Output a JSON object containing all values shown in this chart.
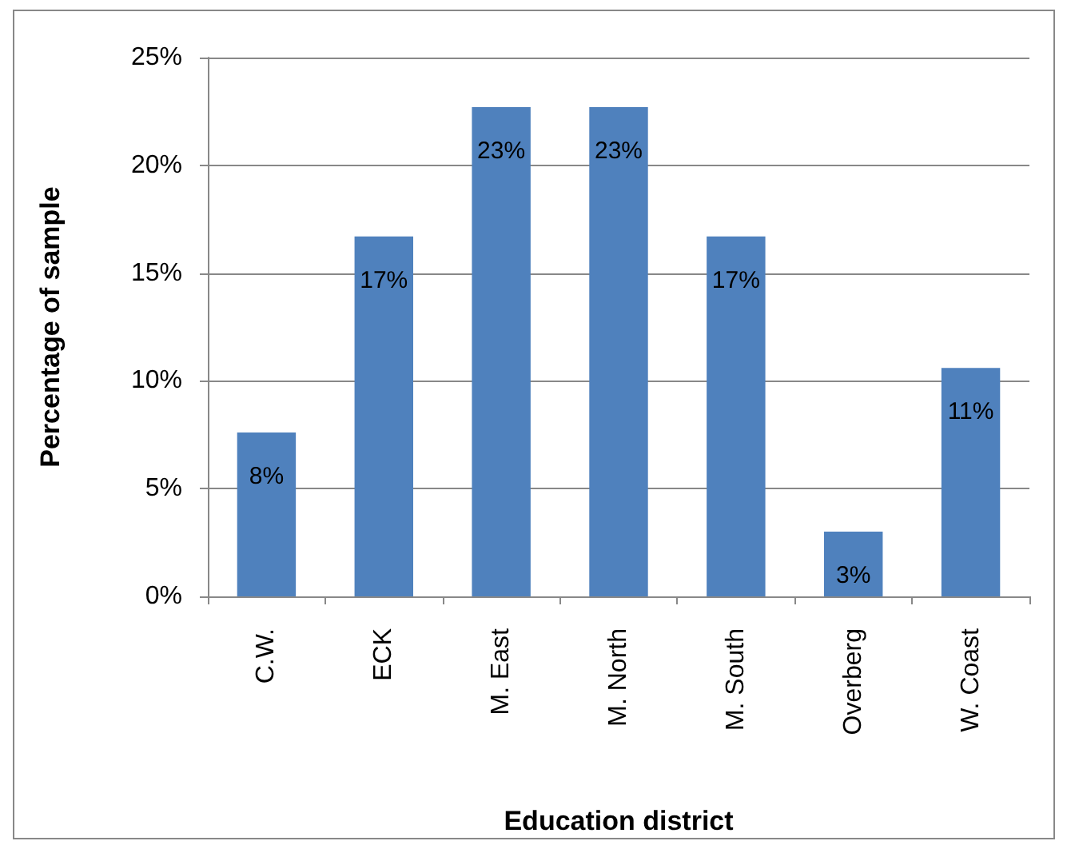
{
  "chart_data": {
    "type": "bar",
    "xlabel": "Education district",
    "ylabel": "Percentage of sample",
    "categories": [
      "C.W.",
      "ECK",
      "M. East",
      "M. North",
      "M. South",
      "Overberg",
      "W. Coast"
    ],
    "values": [
      7.6,
      16.7,
      22.7,
      22.7,
      16.7,
      3.0,
      10.6
    ],
    "value_labels": [
      "8%",
      "17%",
      "23%",
      "23%",
      "17%",
      "3%",
      "11%"
    ],
    "color": "#4f81bd",
    "ylim": [
      0,
      25
    ],
    "yticks": [
      {
        "value": 0,
        "label": "0%"
      },
      {
        "value": 5,
        "label": "5%"
      },
      {
        "value": 10,
        "label": "10%"
      },
      {
        "value": 15,
        "label": "15%"
      },
      {
        "value": 20,
        "label": "20%"
      },
      {
        "value": 25,
        "label": "25%"
      }
    ],
    "grid": "y"
  }
}
